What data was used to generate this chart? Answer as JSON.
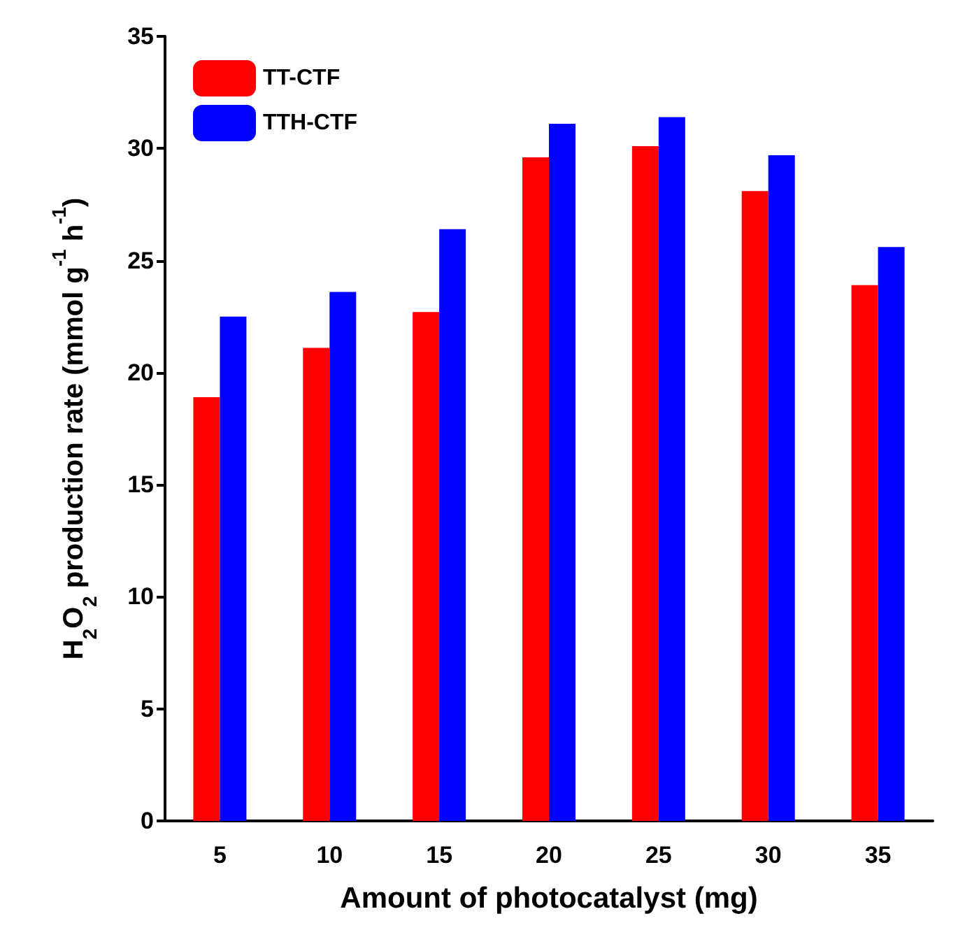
{
  "chart_data": {
    "type": "bar",
    "xlabel": "Amount of photocatalyst (mg)",
    "ylabel": "H$_{2}$O$_{2}$ production rate (mmol g$^{-1}$ h$^{-1}$)",
    "categories": [
      "5",
      "10",
      "15",
      "20",
      "25",
      "30",
      "35"
    ],
    "series": [
      {
        "name": "TT-CTF",
        "color": "#ff0000",
        "values": [
          18.9,
          21.1,
          22.7,
          29.6,
          30.1,
          28.1,
          23.9
        ]
      },
      {
        "name": "TTH-CTF",
        "color": "#0000ff",
        "values": [
          22.5,
          23.6,
          26.4,
          31.1,
          31.4,
          29.7,
          25.6
        ]
      }
    ],
    "ylim": [
      0,
      35
    ],
    "yticks": [
      0,
      5,
      10,
      15,
      20,
      25,
      30,
      35
    ],
    "grid": false,
    "legend": "top left"
  }
}
